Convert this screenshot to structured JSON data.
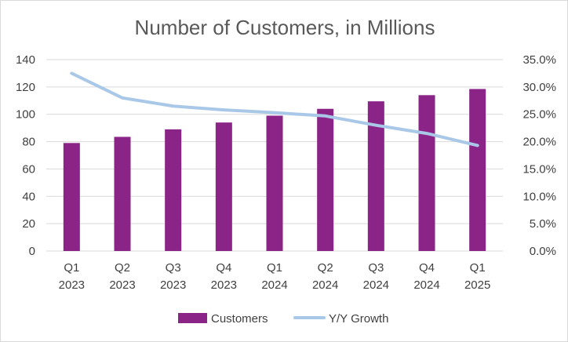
{
  "chart_data": {
    "type": "bar",
    "title": "Number of Customers, in Millions",
    "categories": [
      [
        "Q1",
        "2023"
      ],
      [
        "Q2",
        "2023"
      ],
      [
        "Q3",
        "2023"
      ],
      [
        "Q4",
        "2023"
      ],
      [
        "Q1",
        "2024"
      ],
      [
        "Q2",
        "2024"
      ],
      [
        "Q3",
        "2024"
      ],
      [
        "Q4",
        "2024"
      ],
      [
        "Q1",
        "2025"
      ]
    ],
    "series": [
      {
        "name": "Customers",
        "type": "bar",
        "axis": "left",
        "color": "#8b2487",
        "values": [
          79,
          83.5,
          89,
          94,
          99,
          104,
          109.5,
          114,
          118.5
        ]
      },
      {
        "name": "Y/Y Growth",
        "type": "line",
        "axis": "right",
        "color": "#a9c8e8",
        "values": [
          0.325,
          0.28,
          0.265,
          0.258,
          0.253,
          0.247,
          0.23,
          0.215,
          0.193
        ]
      }
    ],
    "y_left": {
      "min": 0,
      "max": 140,
      "ticks": [
        "0",
        "20",
        "40",
        "60",
        "80",
        "100",
        "120",
        "140"
      ]
    },
    "y_right": {
      "min": 0,
      "max": 0.35,
      "ticks": [
        "0.0%",
        "5.0%",
        "10.0%",
        "15.0%",
        "20.0%",
        "25.0%",
        "30.0%",
        "35.0%"
      ]
    },
    "grid": true,
    "legend_position": "bottom"
  }
}
